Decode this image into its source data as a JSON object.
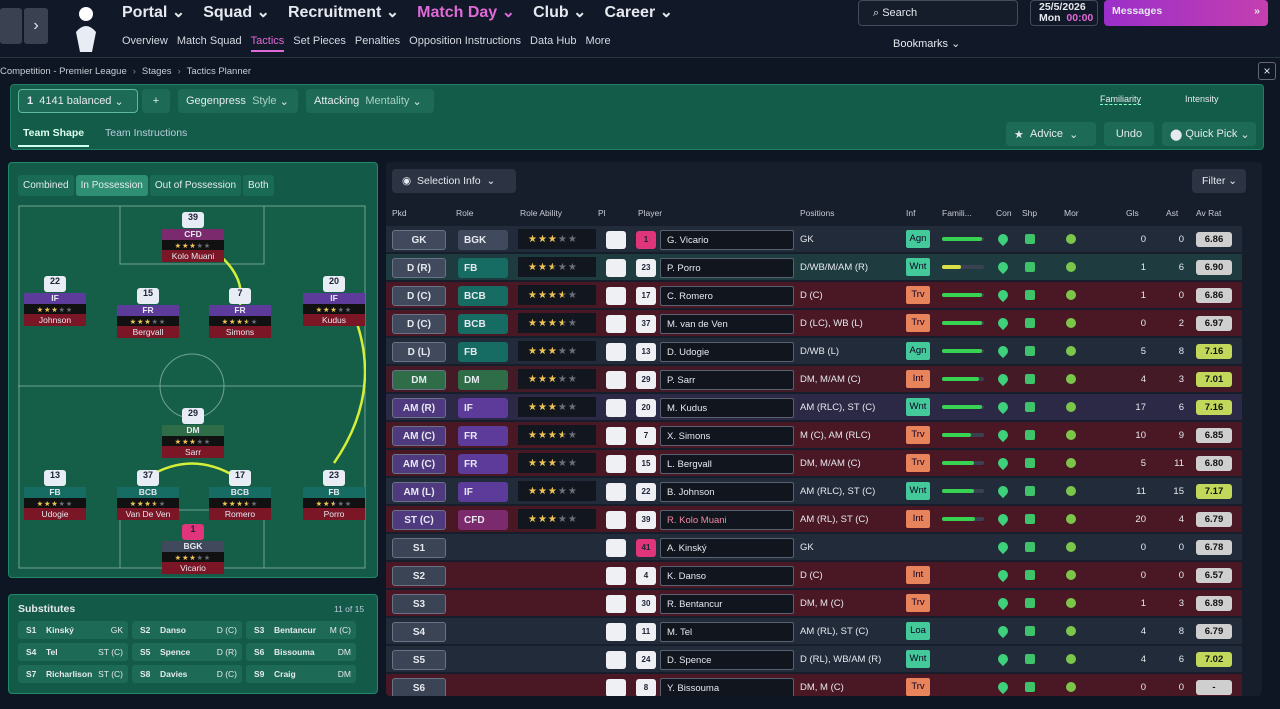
{
  "nav": {
    "main": [
      "Portal",
      "Squad",
      "Recruitment",
      "Match Day",
      "Club",
      "Career"
    ],
    "sub": [
      "Overview",
      "Match Squad",
      "Tactics",
      "Set Pieces",
      "Penalties",
      "Opposition Instructions",
      "Data Hub",
      "More"
    ],
    "search": "Search",
    "date": "25/5/2026",
    "day": "Mon",
    "time": "00:00",
    "messages": "Messages",
    "bookmarks": "Bookmarks"
  },
  "breadcrumb": [
    "Competition - Premier League",
    "Stages",
    "Tactics Planner"
  ],
  "tactic": {
    "slot": "1",
    "name": "4141 balanced",
    "style": "Gegenpress",
    "style_label": "Style",
    "mentality": "Attacking",
    "mentality_label": "Mentality",
    "familiarity": "Familiarity",
    "intensity": "Intensity",
    "tabs": [
      "Team Shape",
      "Team Instructions"
    ],
    "advice": "Advice",
    "undo": "Undo",
    "quick_pick": "Quick Pick"
  },
  "pitch": {
    "tabs": [
      "Combined",
      "In Possession",
      "Out of Possession",
      "Both"
    ],
    "players": [
      {
        "num": "39",
        "role": "CFD",
        "name": "Kolo Muani",
        "ability": 3,
        "color": "#7b2a6e"
      },
      {
        "num": "22",
        "role": "IF",
        "name": "Johnson",
        "ability": 3,
        "color": "#5c3b9a"
      },
      {
        "num": "15",
        "role": "FR",
        "name": "Bergvall",
        "ability": 3,
        "color": "#5c3b9a"
      },
      {
        "num": "7",
        "role": "FR",
        "name": "Simons",
        "ability": 3.5,
        "color": "#5c3b9a"
      },
      {
        "num": "20",
        "role": "IF",
        "name": "Kudus",
        "ability": 3,
        "color": "#5c3b9a"
      },
      {
        "num": "29",
        "role": "DM",
        "name": "Sarr",
        "ability": 3,
        "color": "#2f6d48"
      },
      {
        "num": "13",
        "role": "FB",
        "name": "Udogie",
        "ability": 3,
        "color": "#166b63"
      },
      {
        "num": "37",
        "role": "BCB",
        "name": "Van De Ven",
        "ability": 3.5,
        "color": "#166b63"
      },
      {
        "num": "17",
        "role": "BCB",
        "name": "Romero",
        "ability": 3.5,
        "color": "#166b63"
      },
      {
        "num": "23",
        "role": "FB",
        "name": "Porro",
        "ability": 2.5,
        "color": "#166b63"
      },
      {
        "num": "1",
        "role": "BGK",
        "name": "Vicario",
        "ability": 3,
        "color": "#404a5c"
      }
    ]
  },
  "substitutes": {
    "title": "Substitutes",
    "count": "11 of 15",
    "players": [
      {
        "slot": "S1",
        "name": "Kinský",
        "pos": "GK"
      },
      {
        "slot": "S2",
        "name": "Danso",
        "pos": "D (C)"
      },
      {
        "slot": "S3",
        "name": "Bentancur",
        "pos": "M (C)"
      },
      {
        "slot": "S4",
        "name": "Tel",
        "pos": "ST (C)"
      },
      {
        "slot": "S5",
        "name": "Spence",
        "pos": "D (R)"
      },
      {
        "slot": "S6",
        "name": "Bissouma",
        "pos": "DM"
      },
      {
        "slot": "S7",
        "name": "Richarlison",
        "pos": "ST (C)"
      },
      {
        "slot": "S8",
        "name": "Davies",
        "pos": "D (C)"
      },
      {
        "slot": "S9",
        "name": "Craig",
        "pos": "DM"
      }
    ]
  },
  "table": {
    "selection_info": "Selection Info",
    "filter": "Filter",
    "columns": [
      "Pkd",
      "Role",
      "Role Ability",
      "Pl",
      "Player",
      "Positions",
      "Inf",
      "Famili...",
      "Con",
      "Shp",
      "Mor",
      "Gls",
      "Ast",
      "Av Rat"
    ],
    "rows": [
      {
        "pkd": "GK",
        "role": "BGK",
        "ability": 3,
        "num": "1",
        "player": "G. Vicario",
        "positions": "GK",
        "inf": "Agn",
        "familiarity": 95,
        "gls": 0,
        "ast": 0,
        "rating": "6.86",
        "color": "#222b3a",
        "tag_color": "#404a5c",
        "role_color": "#404a5c",
        "inf_color": "#43c99a",
        "rating_color": "#cfcfcf"
      },
      {
        "pkd": "D (R)",
        "role": "FB",
        "ability": 2.5,
        "num": "23",
        "player": "P. Porro",
        "positions": "D/WB/M/AM (R)",
        "inf": "Wnt",
        "familiarity": 45,
        "gls": 1,
        "ast": 6,
        "rating": "6.90",
        "color": "#1e3b40",
        "tag_color": "#404a5c",
        "role_color": "#166b63",
        "inf_color": "#43c99a",
        "rating_color": "#cfcfcf"
      },
      {
        "pkd": "D (C)",
        "role": "BCB",
        "ability": 3.5,
        "num": "17",
        "player": "C. Romero",
        "positions": "D (C)",
        "inf": "Trv",
        "familiarity": 95,
        "gls": 1,
        "ast": 0,
        "rating": "6.86",
        "color": "#4a1825",
        "tag_color": "#404a5c",
        "role_color": "#166b63",
        "inf_color": "#e8845c",
        "rating_color": "#cfcfcf"
      },
      {
        "pkd": "D (C)",
        "role": "BCB",
        "ability": 3.5,
        "num": "37",
        "player": "M. van de Ven",
        "positions": "D (LC), WB (L)",
        "inf": "Trv",
        "familiarity": 95,
        "gls": 0,
        "ast": 2,
        "rating": "6.97",
        "color": "#4a1825",
        "tag_color": "#404a5c",
        "role_color": "#166b63",
        "inf_color": "#e8845c",
        "rating_color": "#cfcfcf"
      },
      {
        "pkd": "D (L)",
        "role": "FB",
        "ability": 3,
        "num": "13",
        "player": "D. Udogie",
        "positions": "D/WB (L)",
        "inf": "Agn",
        "familiarity": 95,
        "gls": 5,
        "ast": 8,
        "rating": "7.16",
        "color": "#222b3a",
        "tag_color": "#404a5c",
        "role_color": "#166b63",
        "inf_color": "#43c99a",
        "rating_color": "#c2d85a"
      },
      {
        "pkd": "DM",
        "role": "DM",
        "ability": 3,
        "num": "29",
        "player": "P. Sarr",
        "positions": "DM, M/AM (C)",
        "inf": "Int",
        "familiarity": 88,
        "gls": 4,
        "ast": 3,
        "rating": "7.01",
        "color": "#431a26",
        "tag_color": "#2f6d48",
        "role_color": "#2f6d48",
        "inf_color": "#e8845c",
        "rating_color": "#c2d85a"
      },
      {
        "pkd": "AM (R)",
        "role": "IF",
        "ability": 3,
        "num": "20",
        "player": "M. Kudus",
        "positions": "AM (RLC), ST (C)",
        "inf": "Wnt",
        "familiarity": 95,
        "gls": 17,
        "ast": 6,
        "rating": "7.16",
        "color": "#2b2946",
        "tag_color": "#4f3a80",
        "role_color": "#5c3b9a",
        "inf_color": "#43c99a",
        "rating_color": "#c2d85a"
      },
      {
        "pkd": "AM (C)",
        "role": "FR",
        "ability": 3.5,
        "num": "7",
        "player": "X. Simons",
        "positions": "M (C), AM (RLC)",
        "inf": "Trv",
        "familiarity": 70,
        "gls": 10,
        "ast": 9,
        "rating": "6.85",
        "color": "#4a1825",
        "tag_color": "#4f3a80",
        "role_color": "#5c3b9a",
        "inf_color": "#e8845c",
        "rating_color": "#cfcfcf"
      },
      {
        "pkd": "AM (C)",
        "role": "FR",
        "ability": 3,
        "num": "15",
        "player": "L. Bergvall",
        "positions": "DM, M/AM (C)",
        "inf": "Trv",
        "familiarity": 75,
        "gls": 5,
        "ast": 11,
        "rating": "6.80",
        "color": "#4a1825",
        "tag_color": "#4f3a80",
        "role_color": "#5c3b9a",
        "inf_color": "#e8845c",
        "rating_color": "#cfcfcf"
      },
      {
        "pkd": "AM (L)",
        "role": "IF",
        "ability": 3,
        "num": "22",
        "player": "B. Johnson",
        "positions": "AM (RLC), ST (C)",
        "inf": "Wnt",
        "familiarity": 75,
        "gls": 11,
        "ast": 15,
        "rating": "7.17",
        "color": "#222b3a",
        "tag_color": "#4f3a80",
        "role_color": "#5c3b9a",
        "inf_color": "#43c99a",
        "rating_color": "#c2d85a"
      },
      {
        "pkd": "ST (C)",
        "role": "CFD",
        "ability": 3,
        "num": "39",
        "player": "R. Kolo Muani",
        "positions": "AM (RL), ST (C)",
        "inf": "Int",
        "familiarity": 78,
        "gls": 20,
        "ast": 4,
        "rating": "6.79",
        "color": "#4a1825",
        "tag_color": "#4f3a80",
        "role_color": "#7b2a6e",
        "inf_color": "#e8845c",
        "rating_color": "#cfcfcf"
      },
      {
        "pkd": "S1",
        "num": "41",
        "player": "A. Kinský",
        "positions": "GK",
        "gls": 0,
        "ast": 0,
        "rating": "6.78",
        "color": "#222b3a",
        "tag_color": "#3b4455",
        "rating_color": "#cfcfcf"
      },
      {
        "pkd": "S2",
        "num": "4",
        "player": "K. Danso",
        "positions": "D (C)",
        "inf": "Int",
        "gls": 0,
        "ast": 0,
        "rating": "6.57",
        "color": "#4a1825",
        "tag_color": "#3b4455",
        "inf_color": "#e8845c",
        "rating_color": "#cfcfcf"
      },
      {
        "pkd": "S3",
        "num": "30",
        "player": "R. Bentancur",
        "positions": "DM, M (C)",
        "inf": "Trv",
        "gls": 1,
        "ast": 3,
        "rating": "6.89",
        "color": "#4a1825",
        "tag_color": "#3b4455",
        "inf_color": "#e8845c",
        "rating_color": "#cfcfcf"
      },
      {
        "pkd": "S4",
        "num": "11",
        "player": "M. Tel",
        "positions": "AM (RL), ST (C)",
        "inf": "Loa",
        "gls": 4,
        "ast": 8,
        "rating": "6.79",
        "color": "#222b3a",
        "tag_color": "#3b4455",
        "inf_color": "#43c99a",
        "rating_color": "#cfcfcf"
      },
      {
        "pkd": "S5",
        "num": "24",
        "player": "D. Spence",
        "positions": "D (RL), WB/AM (R)",
        "inf": "Wnt",
        "gls": 4,
        "ast": 6,
        "rating": "7.02",
        "color": "#222b3a",
        "tag_color": "#3b4455",
        "inf_color": "#43c99a",
        "rating_color": "#c2d85a"
      },
      {
        "pkd": "S6",
        "num": "8",
        "player": "Y. Bissouma",
        "positions": "DM, M (C)",
        "inf": "Trv",
        "gls": 0,
        "ast": 0,
        "rating": "-",
        "color": "#4a1825",
        "tag_color": "#3b4455",
        "inf_color": "#e8845c",
        "rating_color": "#cfcfcf"
      }
    ]
  }
}
